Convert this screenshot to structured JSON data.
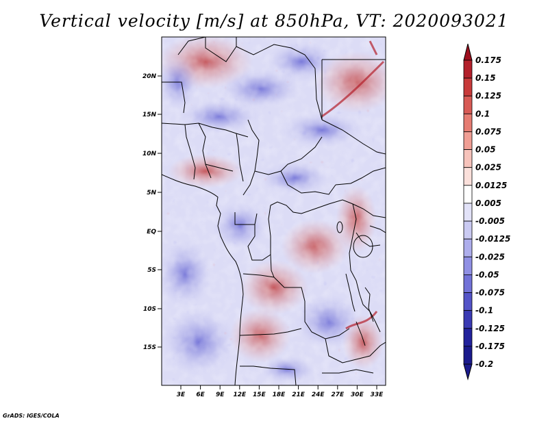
{
  "title": "Vertical velocity [m/s] at 850hPa, VT: 2020093021",
  "footer": "GrADS: IGES/COLA",
  "map": {
    "lat_labels": [
      "20N",
      "15N",
      "10N",
      "5N",
      "EQ",
      "5S",
      "10S",
      "15S"
    ],
    "lon_labels": [
      "3E",
      "6E",
      "9E",
      "12E",
      "15E",
      "18E",
      "21E",
      "24E",
      "27E",
      "30E",
      "33E"
    ]
  },
  "colorbar": {
    "labels": [
      "0.175",
      "0.15",
      "0.125",
      "0.1",
      "0.075",
      "0.05",
      "0.025",
      "0.0125",
      "0.005",
      "-0.005",
      "-0.0125",
      "-0.025",
      "-0.05",
      "-0.075",
      "-0.1",
      "-0.125",
      "-0.175",
      "-0.2"
    ],
    "colors": [
      "#9e0f1e",
      "#b3202b",
      "#c83a3a",
      "#d85a55",
      "#e67c72",
      "#f09e94",
      "#f7c3bb",
      "#fbe0db",
      "#ffffff",
      "#e2e2f8",
      "#cacaf2",
      "#aeaeec",
      "#9090e4",
      "#7272d8",
      "#5454c8",
      "#3a3ab4",
      "#22229c",
      "#1a1a8c"
    ]
  }
}
